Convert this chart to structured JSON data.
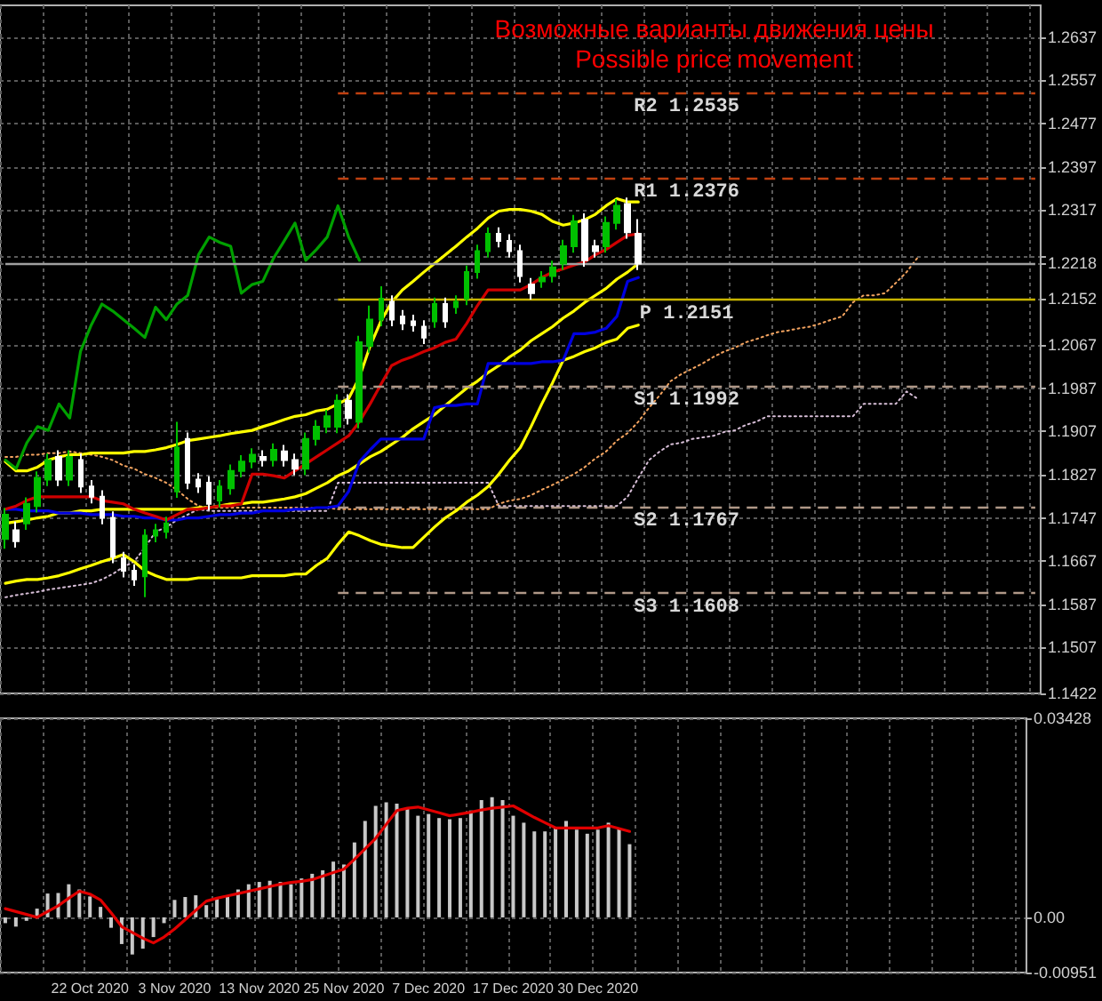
{
  "chart_data": [
    {
      "type": "candlestick",
      "title": "Возможные варианты движения цены",
      "subtitle": "Possible price movement",
      "categories": [
        null,
        null,
        null,
        null,
        null,
        null,
        null,
        null,
        null,
        null,
        null,
        null,
        null,
        null,
        null,
        null,
        null,
        null,
        null,
        null,
        null,
        null,
        null,
        null,
        null,
        null,
        null,
        null,
        null,
        null,
        null,
        null,
        null,
        null,
        null,
        null,
        null,
        null,
        null,
        null,
        null,
        null,
        null,
        null,
        null,
        null,
        null,
        null,
        null,
        null,
        null,
        null,
        null,
        null,
        null,
        null,
        null,
        null,
        null,
        null,
        null,
        null,
        null,
        null,
        null,
        null,
        null,
        null,
        null,
        null,
        null,
        null,
        null,
        null,
        null,
        null,
        null,
        null,
        null,
        null,
        null,
        null,
        null,
        null,
        null,
        null,
        null,
        null,
        null,
        null,
        null,
        null,
        null,
        null,
        null,
        null,
        null
      ],
      "series": [
        {
          "type": "line",
          "color": "#f4a460",
          "line_style": "dotted",
          "values": [
            1.186,
            1.186,
            1.1864,
            1.1864,
            1.1867,
            1.1867,
            1.187,
            1.1867,
            1.1864,
            1.186,
            1.1854,
            1.1844,
            1.1838,
            1.1828,
            1.1821,
            1.1812,
            1.1799,
            1.1782,
            1.1769,
            1.1766,
            1.1766,
            1.1766,
            1.1766,
            1.1766,
            1.1766,
            1.1766,
            1.1766,
            1.1766,
            1.1766,
            1.1766,
            1.1766,
            1.1763,
            1.1763,
            1.1763,
            1.1763,
            1.1763,
            1.1763,
            1.1763,
            1.1763,
            1.1763,
            1.1763,
            1.1763,
            1.1763,
            1.1763,
            1.1763,
            1.1763,
            1.1773,
            1.1779,
            1.1782,
            1.1789,
            1.1799,
            1.1808,
            1.1818,
            1.1828,
            1.1841,
            1.1857,
            1.187,
            1.189,
            1.1904,
            1.1925,
            1.1951,
            1.1974,
            1.2,
            1.2013,
            1.2023,
            1.2033,
            1.2045,
            1.2055,
            1.2062,
            1.2072,
            1.2078,
            1.2085,
            1.2091,
            1.2094,
            1.2098,
            1.2101,
            1.2107,
            1.2114,
            1.212,
            1.2146,
            1.2159,
            1.2159,
            1.2163,
            1.2182,
            1.2202,
            1.2228,
            null,
            null,
            null,
            null,
            null,
            null,
            null,
            null,
            null,
            null,
            null
          ]
        },
        {
          "type": "line",
          "color": "#d8bfd8",
          "line_style": "dotted",
          "values": [
            1.16,
            1.1604,
            1.1607,
            1.161,
            1.1614,
            1.1617,
            1.162,
            1.1623,
            1.1626,
            1.1633,
            1.1643,
            1.1656,
            1.1666,
            1.1692,
            1.1721,
            1.173,
            1.1743,
            1.1753,
            1.1763,
            1.176,
            1.176,
            1.176,
            1.176,
            1.176,
            1.176,
            1.176,
            1.176,
            1.176,
            1.176,
            1.176,
            1.176,
            1.1812,
            1.1812,
            1.1812,
            1.1812,
            1.1812,
            1.1812,
            1.1812,
            1.1812,
            1.1812,
            1.1812,
            1.1812,
            1.1812,
            1.1812,
            1.1812,
            1.1812,
            1.1769,
            1.1769,
            1.1769,
            1.1769,
            1.1769,
            1.1769,
            1.1769,
            1.1769,
            1.1769,
            1.1769,
            1.1769,
            1.1769,
            1.1786,
            1.1821,
            1.1854,
            1.187,
            1.1883,
            1.1886,
            1.1893,
            1.1896,
            1.1899,
            1.1906,
            1.1909,
            1.1919,
            1.1925,
            1.1935,
            1.1935,
            1.1935,
            1.1935,
            1.1935,
            1.1935,
            1.1935,
            1.1935,
            1.1935,
            1.1958,
            1.1958,
            1.1958,
            1.1958,
            1.1981,
            1.1968,
            null,
            null,
            null,
            null,
            null,
            null,
            null,
            null,
            null,
            null,
            null
          ]
        },
        {
          "type": "line",
          "color": "#ffff00",
          "values": [
            1.1851,
            1.1834,
            1.1834,
            1.1841,
            1.1854,
            1.186,
            1.1864,
            1.1864,
            1.1867,
            1.1867,
            1.1867,
            1.1867,
            1.187,
            1.187,
            1.1873,
            1.1877,
            1.1883,
            1.189,
            1.1893,
            1.1896,
            1.1899,
            1.1903,
            1.1906,
            1.1909,
            1.1916,
            1.1922,
            1.1929,
            1.1935,
            1.1938,
            1.1945,
            1.1948,
            1.1958,
            1.1968,
            1.2007,
            1.2065,
            1.2111,
            1.2146,
            1.2169,
            1.2185,
            1.2202,
            1.2218,
            1.2234,
            1.225,
            1.2267,
            1.2283,
            1.2302,
            1.2315,
            1.2318,
            1.2318,
            1.2315,
            1.2309,
            1.2296,
            1.2289,
            1.2293,
            1.2299,
            1.2309,
            1.2325,
            1.2338,
            1.2332,
            1.2332,
            null,
            null,
            null,
            null,
            null,
            null,
            null,
            null,
            null,
            null,
            null,
            null,
            null,
            null,
            null,
            null,
            null,
            null,
            null,
            null,
            null,
            null,
            null,
            null,
            null,
            null,
            null,
            null,
            null,
            null,
            null,
            null,
            null,
            null,
            null,
            null,
            null
          ]
        },
        {
          "type": "line",
          "color": "#ffff00",
          "values": [
            1.1737,
            1.174,
            1.1743,
            1.1747,
            1.175,
            1.1756,
            1.1756,
            1.176,
            1.176,
            1.1763,
            1.1763,
            1.1763,
            1.1763,
            1.1763,
            1.1763,
            1.1763,
            1.1763,
            1.1763,
            1.1766,
            1.1766,
            1.1769,
            1.1773,
            1.1773,
            1.1776,
            1.1776,
            1.1779,
            1.1782,
            1.1786,
            1.1792,
            1.1802,
            1.1812,
            1.1825,
            1.1834,
            1.1847,
            1.186,
            1.187,
            1.1883,
            1.1896,
            1.1912,
            1.1925,
            1.1938,
            1.1955,
            1.1971,
            1.1987,
            1.2,
            1.2016,
            1.2029,
            1.2045,
            1.2058,
            1.2075,
            1.2088,
            1.2101,
            1.2117,
            1.213,
            1.2146,
            1.2159,
            1.2172,
            1.2189,
            1.2202,
            1.2218,
            null,
            null,
            null,
            null,
            null,
            null,
            null,
            null,
            null,
            null,
            null,
            null,
            null,
            null,
            null,
            null,
            null,
            null,
            null,
            null,
            null,
            null,
            null,
            null,
            null,
            null,
            null,
            null,
            null,
            null,
            null,
            null,
            null,
            null,
            null,
            null,
            null
          ]
        },
        {
          "type": "line",
          "color": "#ffff00",
          "values": [
            1.1626,
            1.163,
            1.1633,
            1.1633,
            1.1636,
            1.164,
            1.1646,
            1.1653,
            1.1659,
            1.1666,
            1.1672,
            1.1679,
            1.1666,
            1.1649,
            1.164,
            1.1633,
            1.1633,
            1.1633,
            1.1636,
            1.1636,
            1.1636,
            1.1636,
            1.1636,
            1.164,
            1.164,
            1.164,
            1.164,
            1.1643,
            1.1643,
            1.1659,
            1.1672,
            1.1698,
            1.1721,
            1.1714,
            1.1705,
            1.1698,
            1.1695,
            1.1692,
            1.1692,
            1.1711,
            1.173,
            1.1747,
            1.176,
            1.1776,
            1.1789,
            1.1805,
            1.1828,
            1.1854,
            1.1877,
            1.1916,
            1.1958,
            1.1997,
            1.2039,
            1.2046,
            1.2055,
            1.2062,
            1.2072,
            1.2078,
            1.2098,
            1.2104,
            null,
            null,
            null,
            null,
            null,
            null,
            null,
            null,
            null,
            null,
            null,
            null,
            null,
            null,
            null,
            null,
            null,
            null,
            null,
            null,
            null,
            null,
            null,
            null,
            null,
            null,
            null,
            null,
            null,
            null,
            null,
            null,
            null,
            null,
            null,
            null,
            null
          ]
        },
        {
          "type": "line",
          "color": "#0000e0",
          "values": [
            1.1763,
            1.1763,
            1.176,
            1.176,
            1.176,
            1.1756,
            1.1756,
            1.1756,
            1.1753,
            1.1753,
            1.1753,
            1.175,
            1.175,
            1.1747,
            1.1747,
            1.1743,
            1.1743,
            1.1747,
            1.1747,
            1.175,
            1.1753,
            1.1753,
            1.1756,
            1.1756,
            1.176,
            1.176,
            1.176,
            1.1763,
            1.1763,
            1.1766,
            1.1766,
            1.1769,
            1.1796,
            1.1851,
            1.1873,
            1.1893,
            1.1893,
            1.1893,
            1.1893,
            1.1893,
            1.1951,
            1.1955,
            1.1955,
            1.1958,
            1.1958,
            1.2033,
            1.2033,
            1.2033,
            1.2033,
            1.2033,
            1.2036,
            1.2036,
            1.2039,
            1.2088,
            1.2088,
            1.2091,
            1.2098,
            1.212,
            1.2185,
            1.2192,
            null,
            null,
            null,
            null,
            null,
            null,
            null,
            null,
            null,
            null,
            null,
            null,
            null,
            null,
            null,
            null,
            null,
            null,
            null,
            null,
            null,
            null,
            null,
            null,
            null,
            null,
            null,
            null,
            null,
            null,
            null,
            null,
            null,
            null,
            null,
            null,
            null
          ]
        },
        {
          "type": "line",
          "color": "#d00000",
          "values": [
            1.1763,
            1.1769,
            1.1779,
            1.1786,
            1.1786,
            1.1786,
            1.1786,
            1.1786,
            1.1786,
            1.1779,
            1.1776,
            1.1773,
            1.1763,
            1.1756,
            1.175,
            1.1743,
            1.1753,
            1.1763,
            1.1763,
            1.1766,
            1.1769,
            1.1769,
            1.1773,
            1.1828,
            1.1828,
            1.1825,
            1.1821,
            1.1834,
            1.1847,
            1.186,
            1.1873,
            1.1886,
            1.1899,
            1.1925,
            1.1958,
            1.1994,
            1.2029,
            1.2039,
            1.2046,
            1.2055,
            1.2062,
            1.2072,
            1.2078,
            1.2107,
            1.214,
            1.2169,
            1.2169,
            1.2169,
            1.2169,
            1.2179,
            1.2192,
            1.2202,
            1.2208,
            1.2215,
            1.2221,
            1.2234,
            1.2244,
            1.2257,
            1.227,
            1.2273,
            null,
            null,
            null,
            null,
            null,
            null,
            null,
            null,
            null,
            null,
            null,
            null,
            null,
            null,
            null,
            null,
            null,
            null,
            null,
            null,
            null,
            null,
            null,
            null,
            null,
            null,
            null,
            null,
            null,
            null,
            null,
            null,
            null,
            null,
            null,
            null,
            null
          ]
        },
        {
          "type": "line",
          "color": "#00a000",
          "values": [
            1.1854,
            1.1838,
            1.1886,
            1.1916,
            1.1909,
            1.1958,
            1.1932,
            1.2055,
            1.2104,
            1.2143,
            1.213,
            1.2114,
            1.2098,
            1.2081,
            1.2137,
            1.2114,
            1.2143,
            1.2159,
            1.2234,
            1.2267,
            1.2257,
            1.225,
            1.2163,
            1.2179,
            1.2185,
            1.2228,
            1.226,
            1.2293,
            1.2224,
            1.2244,
            1.2267,
            1.2325,
            1.2267,
            1.2224,
            null,
            null,
            null,
            null,
            null,
            null,
            null,
            null,
            null,
            null,
            null,
            null,
            null,
            null,
            null,
            null,
            null,
            null,
            null,
            null,
            null,
            null,
            null,
            null,
            null,
            null,
            null,
            null,
            null,
            null,
            null,
            null,
            null,
            null,
            null,
            null,
            null,
            null,
            null,
            null,
            null,
            null,
            null,
            null,
            null,
            null,
            null,
            null,
            null,
            null,
            null,
            null,
            null,
            null,
            null,
            null,
            null,
            null,
            null,
            null,
            null,
            null,
            null
          ]
        },
        {
          "ohlc": [
            [
              1.1708,
              1.1765,
              1.169,
              1.1753
            ],
            [
              1.1724,
              1.174,
              1.1692,
              1.1704
            ],
            [
              1.1737,
              1.1785,
              1.1725,
              1.1773
            ],
            [
              1.1769,
              1.1833,
              1.1757,
              1.1821
            ],
            [
              1.1818,
              1.1866,
              1.1806,
              1.1854
            ],
            [
              1.186,
              1.1872,
              1.1806,
              1.1818
            ],
            [
              1.1818,
              1.1872,
              1.1806,
              1.186
            ],
            [
              1.1854,
              1.1866,
              1.1793,
              1.1805
            ],
            [
              1.1805,
              1.1817,
              1.1774,
              1.1786
            ],
            [
              1.1786,
              1.1798,
              1.1735,
              1.1747
            ],
            [
              1.1747,
              1.1759,
              1.1663,
              1.1675
            ],
            [
              1.1672,
              1.1684,
              1.1637,
              1.1649
            ],
            [
              1.1649,
              1.1661,
              1.1621,
              1.1633
            ],
            [
              1.1639,
              1.1726,
              1.16,
              1.1714
            ],
            [
              1.1714,
              1.1736,
              1.1702,
              1.1724
            ],
            [
              1.1721,
              1.1749,
              1.1709,
              1.1737
            ],
            [
              1.1796,
              1.1925,
              1.1784,
              1.1877
            ],
            [
              1.1893,
              1.1905,
              1.18,
              1.1812
            ],
            [
              1.1818,
              1.183,
              1.1793,
              1.1805
            ],
            [
              1.1812,
              1.1824,
              1.1761,
              1.1773
            ],
            [
              1.1779,
              1.1817,
              1.1767,
              1.1805
            ],
            [
              1.1802,
              1.1846,
              1.179,
              1.1834
            ],
            [
              1.1834,
              1.1863,
              1.1822,
              1.1851
            ],
            [
              1.1851,
              1.1876,
              1.1839,
              1.1864
            ],
            [
              1.186,
              1.1872,
              1.1842,
              1.1854
            ],
            [
              1.1854,
              1.1885,
              1.1842,
              1.1873
            ],
            [
              1.187,
              1.1882,
              1.1842,
              1.1854
            ],
            [
              1.1854,
              1.1866,
              1.1826,
              1.1838
            ],
            [
              1.1838,
              1.1905,
              1.1826,
              1.1893
            ],
            [
              1.1893,
              1.1928,
              1.1881,
              1.1916
            ],
            [
              1.1916,
              1.1947,
              1.1904,
              1.1935
            ],
            [
              1.1916,
              1.1976,
              1.1904,
              1.1964
            ],
            [
              1.1964,
              1.1976,
              1.192,
              1.1932
            ],
            [
              1.1925,
              1.2084,
              1.1913,
              1.2072
            ],
            [
              1.2065,
              1.214,
              1.2053,
              1.2114
            ],
            [
              1.2114,
              1.2176,
              1.2102,
              1.2153
            ],
            [
              1.2147,
              1.2159,
              1.2102,
              1.2114
            ],
            [
              1.212,
              1.2132,
              1.2095,
              1.2107
            ],
            [
              1.2111,
              1.2123,
              1.2092,
              1.2104
            ],
            [
              1.2101,
              1.2113,
              1.2069,
              1.2081
            ],
            [
              1.2111,
              1.2155,
              1.2099,
              1.2143
            ],
            [
              1.2143,
              1.2155,
              1.2099,
              1.2111
            ],
            [
              1.2137,
              1.2159,
              1.2125,
              1.2147
            ],
            [
              1.2153,
              1.2214,
              1.2141,
              1.2202
            ],
            [
              1.2202,
              1.2253,
              1.219,
              1.2241
            ],
            [
              1.2241,
              1.2285,
              1.2229,
              1.2273
            ],
            [
              1.2273,
              1.2285,
              1.2248,
              1.226
            ],
            [
              1.226,
              1.2272,
              1.2229,
              1.2241
            ],
            [
              1.2241,
              1.2253,
              1.2183,
              1.2195
            ],
            [
              1.2179,
              1.2191,
              1.2151,
              1.2163
            ],
            [
              1.2185,
              1.2204,
              1.2173,
              1.2192
            ],
            [
              1.2195,
              1.2223,
              1.2183,
              1.2211
            ],
            [
              1.2218,
              1.2262,
              1.2206,
              1.225
            ],
            [
              1.225,
              1.2308,
              1.2238,
              1.2296
            ],
            [
              1.2299,
              1.2311,
              1.2212,
              1.2224
            ],
            [
              1.225,
              1.2262,
              1.2229,
              1.2241
            ],
            [
              1.225,
              1.2305,
              1.2238,
              1.2293
            ],
            [
              1.2293,
              1.2337,
              1.2281,
              1.2325
            ],
            [
              1.2328,
              1.234,
              1.2264,
              1.2276
            ],
            [
              1.2273,
              1.23,
              1.2206,
              1.2218
            ],
            null,
            null,
            null,
            null,
            null,
            null,
            null,
            null,
            null,
            null,
            null,
            null,
            null,
            null,
            null,
            null,
            null,
            null,
            null,
            null,
            null,
            null,
            null,
            null,
            null,
            null,
            null,
            null,
            null,
            null,
            null,
            null,
            null,
            null,
            null,
            null,
            null
          ],
          "colors": [
            "#00c000",
            "#ffffff",
            "#00c000",
            "#00c000",
            "#00c000",
            "#ffffff",
            "#00c000",
            "#ffffff",
            "#ffffff",
            "#ffffff",
            "#ffffff",
            "#ffffff",
            "#ffffff",
            "#00c000",
            "#00c000",
            "#00c000",
            "#00c000",
            "#ffffff",
            "#ffffff",
            "#ffffff",
            "#00c000",
            "#00c000",
            "#00c000",
            "#00c000",
            "#ffffff",
            "#00c000",
            "#ffffff",
            "#ffffff",
            "#00c000",
            "#00c000",
            "#00c000",
            "#00c000",
            "#ffffff",
            "#00c000",
            "#00c000",
            "#00c000",
            "#ffffff",
            "#ffffff",
            "#ffffff",
            "#ffffff",
            "#00c000",
            "#ffffff",
            "#00c000",
            "#00c000",
            "#00c000",
            "#00c000",
            "#ffffff",
            "#ffffff",
            "#ffffff",
            "#ffffff",
            "#00c000",
            "#00c000",
            "#00c000",
            "#00c000",
            "#ffffff",
            "#ffffff",
            "#00c000",
            "#00c000",
            "#ffffff",
            "#ffffff",
            null,
            null,
            null,
            null,
            null,
            null,
            null,
            null,
            null,
            null,
            null,
            null,
            null,
            null,
            null,
            null,
            null,
            null,
            null,
            null,
            null,
            null,
            null,
            null,
            null,
            null,
            null,
            null,
            null,
            null,
            null,
            null,
            null,
            null,
            null,
            null,
            null
          ]
        }
      ],
      "ylim": [
        1.1422,
        1.2696
      ],
      "yticks": [
        1.1422,
        1.1507,
        1.1587,
        1.1667,
        1.1747,
        1.1827,
        1.1907,
        1.1987,
        1.2067,
        1.2152,
        1.2218,
        {
          "value": 1.2232,
          "label": null
        },
        1.2317,
        1.2397,
        1.2477,
        1.2557,
        1.2637
      ],
      "grid": true,
      "tick_labels": "y",
      "marker": "none",
      "ref_lines": [
        {
          "axis": "y",
          "value": 1.2535,
          "label": "R2 1.2535",
          "color": "#c04010",
          "line_style": "dashed"
        },
        {
          "axis": "y",
          "value": 1.2376,
          "label": "R1 1.2376",
          "color": "#c04010",
          "line_style": "dashed"
        },
        {
          "axis": "y",
          "value": 1.2218,
          "color": "#a0a0a0",
          "line_style": "solid"
        },
        {
          "axis": "y",
          "value": 1.2151,
          "label": "P 1.2151",
          "color": "#c8b400",
          "line_style": "solid"
        },
        {
          "axis": "y",
          "value": 1.1992,
          "label": "S1 1.1992",
          "color": "#b09888",
          "line_style": "dashed"
        },
        {
          "axis": "y",
          "value": 1.1767,
          "label": "S2 1.1767",
          "color": "#b09888",
          "line_style": "dashed"
        },
        {
          "axis": "y",
          "value": 1.1608,
          "label": "S3 1.1608",
          "color": "#b09888",
          "line_style": "dashed"
        }
      ]
    },
    {
      "type": "bar",
      "categories": [
        null,
        null,
        null,
        null,
        null,
        null,
        null,
        null,
        "22 Oct 2020",
        null,
        null,
        null,
        null,
        null,
        null,
        null,
        "3 Nov 2020",
        null,
        null,
        null,
        null,
        null,
        null,
        null,
        "13 Nov 2020",
        null,
        null,
        null,
        null,
        null,
        null,
        null,
        "25 Nov 2020",
        null,
        null,
        null,
        null,
        null,
        null,
        null,
        "7 Dec 2020",
        null,
        null,
        null,
        null,
        null,
        null,
        null,
        "17 Dec 2020",
        null,
        null,
        null,
        null,
        null,
        null,
        null,
        "30 Dec 2020",
        null,
        null,
        null,
        null,
        null,
        null,
        null,
        null,
        null,
        null,
        null,
        null,
        null,
        null,
        null,
        null,
        null,
        null,
        null,
        null,
        null,
        null,
        null,
        null,
        null,
        null,
        null,
        null,
        null,
        null,
        null,
        null,
        null,
        null,
        null,
        null,
        null,
        null,
        null,
        null
      ],
      "series": [
        {
          "color": "#c8c8c8",
          "values": [
            -0.001,
            -0.0016,
            -0.0006,
            0.0015,
            0.0041,
            0.0042,
            0.0057,
            0.0048,
            0.0036,
            0.0018,
            -0.0018,
            -0.0046,
            -0.0064,
            -0.0054,
            -0.0034,
            -0.001,
            0.003,
            0.0035,
            0.0038,
            0.0021,
            0.0033,
            0.0036,
            0.0048,
            0.0057,
            0.0061,
            0.0063,
            0.0061,
            0.0057,
            0.0067,
            0.0075,
            0.0081,
            0.0096,
            0.0091,
            0.0129,
            0.0166,
            0.0192,
            0.0198,
            0.0196,
            0.0188,
            0.0175,
            0.0178,
            0.0171,
            0.0169,
            0.0171,
            0.0184,
            0.0202,
            0.0207,
            0.0202,
            0.0175,
            0.0163,
            0.0148,
            0.0148,
            0.0154,
            0.0166,
            0.0151,
            0.0144,
            0.0151,
            0.0163,
            0.0154,
            0.0126,
            null,
            null,
            null,
            null,
            null,
            null,
            null,
            null,
            null,
            null,
            null,
            null,
            null,
            null,
            null,
            null,
            null,
            null,
            null,
            null,
            null,
            null,
            null,
            null,
            null,
            null,
            null,
            null,
            null,
            null,
            null,
            null,
            null,
            null,
            null,
            null,
            null
          ]
        },
        {
          "type": "line",
          "color": "#e00000",
          "values": [
            0.0015,
            0.001,
            0.0005,
            0.0,
            0.001,
            0.002,
            0.0033,
            0.0045,
            0.004,
            0.003,
            0.0008,
            -0.0016,
            -0.0026,
            -0.0036,
            -0.0044,
            -0.0034,
            -0.002,
            -0.0004,
            0.0012,
            0.0028,
            0.0033,
            0.0037,
            0.0041,
            0.0045,
            0.0049,
            0.0053,
            0.0057,
            0.006,
            0.0062,
            0.0065,
            0.0071,
            0.0077,
            0.0083,
            0.01,
            0.0118,
            0.0136,
            0.016,
            0.0184,
            0.0188,
            0.019,
            0.0185,
            0.018,
            0.0175,
            0.0178,
            0.0181,
            0.0185,
            0.0188,
            0.019,
            0.0192,
            0.0182,
            0.0172,
            0.0163,
            0.0154,
            0.0154,
            0.0154,
            0.0154,
            0.0154,
            0.0158,
            0.0153,
            0.0148,
            null,
            null,
            null,
            null,
            null,
            null,
            null,
            null,
            null,
            null,
            null,
            null,
            null,
            null,
            null,
            null,
            null,
            null,
            null,
            null,
            null,
            null,
            null,
            null,
            null,
            null,
            null,
            null,
            null,
            null,
            null,
            null,
            null,
            null,
            null,
            null,
            null
          ]
        }
      ],
      "ylim": [
        -0.00951,
        0.03428
      ],
      "yticks": [
        -0.00951,
        {
          "value": 0,
          "label": "0.00"
        },
        0.03428
      ],
      "grid": true,
      "marker": "none"
    }
  ]
}
